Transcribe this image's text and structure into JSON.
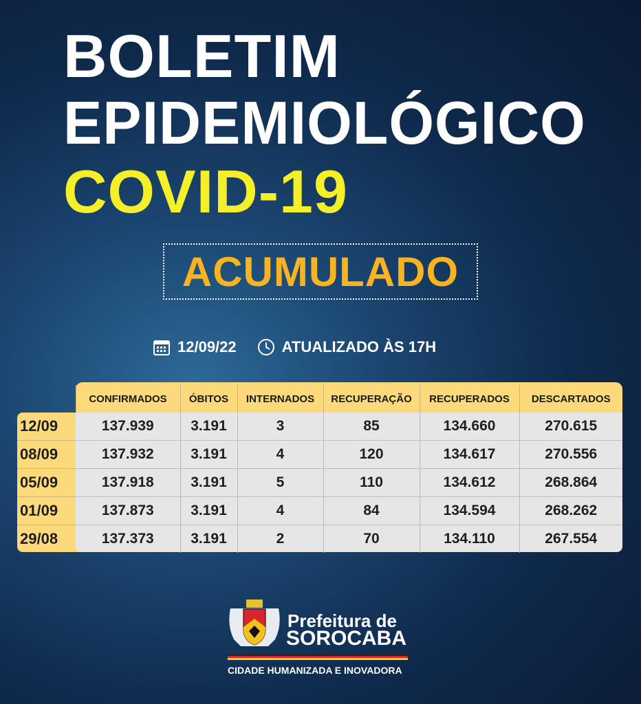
{
  "title": {
    "line1": "BOLETIM",
    "line2": "EPIDEMIOLÓGICO",
    "line3": "COVID-19"
  },
  "badge": "ACUMULADO",
  "info": {
    "date": "12/09/22",
    "updated": "ATUALIZADO ÀS 17H",
    "date_icon": "calendar-icon",
    "time_icon": "clock-icon"
  },
  "colors": {
    "title_yellow": "#f5ef2a",
    "badge_orange": "#f7b320",
    "table_header": "#fcd97a",
    "table_body": "#e6e6e6"
  },
  "table": {
    "columns": [
      "CONFIRMADOS",
      "ÓBITOS",
      "INTERNADOS",
      "RECUPERAÇÃO",
      "RECUPERADOS",
      "DESCARTADOS"
    ],
    "rows": [
      {
        "date": "12/09",
        "values": [
          "137.939",
          "3.191",
          "3",
          "85",
          "134.660",
          "270.615"
        ]
      },
      {
        "date": "08/09",
        "values": [
          "137.932",
          "3.191",
          "4",
          "120",
          "134.617",
          "270.556"
        ]
      },
      {
        "date": "05/09",
        "values": [
          "137.918",
          "3.191",
          "5",
          "110",
          "134.612",
          "268.864"
        ]
      },
      {
        "date": "01/09",
        "values": [
          "137.873",
          "3.191",
          "4",
          "84",
          "134.594",
          "268.262"
        ]
      },
      {
        "date": "29/08",
        "values": [
          "137.373",
          "3.191",
          "2",
          "70",
          "134.110",
          "267.554"
        ]
      }
    ]
  },
  "footer": {
    "line1": "Prefeitura de",
    "line2": "SOROCABA",
    "slogan": "CIDADE HUMANIZADA E INOVADORA"
  }
}
